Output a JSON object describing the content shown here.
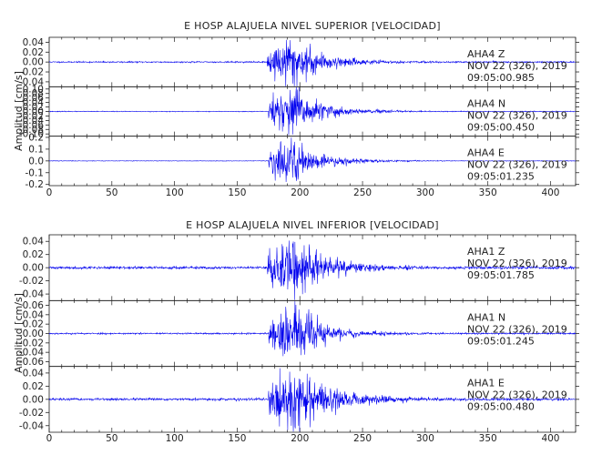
{
  "colors": {
    "trace": "#0000ee",
    "axis": "#222222",
    "background": "#ffffff"
  },
  "chart_data": [
    {
      "type": "line",
      "title": "E HOSP ALAJUELA NIVEL SUPERIOR [VELOCIDAD]",
      "ylabel": "Amplitud [cm/s]",
      "xlim": [
        0,
        420
      ],
      "xticks": [
        0,
        50,
        100,
        150,
        200,
        250,
        300,
        350,
        400
      ],
      "tick_labels": [
        "0",
        "50",
        "100",
        "150",
        "200",
        "250",
        "300",
        "350",
        "400"
      ],
      "traces": [
        {
          "station": "AHA4",
          "component": "Z",
          "date": "NOV 22 (326), 2019",
          "start_time": "09:05:00.985",
          "ylim": [
            -0.05,
            0.05
          ],
          "yticks": [
            0.04,
            0.02,
            0.0,
            -0.02,
            -0.04
          ],
          "ytick_labels": [
            "0.04",
            "0.02",
            "0.00",
            "-0.02",
            "-0.04"
          ],
          "arrival": 174,
          "peak_amplitude": 0.045,
          "noise_level": 0.0012,
          "coda_start": 195,
          "coda_end": 260,
          "seed": 11
        },
        {
          "station": "AHA4",
          "component": "N",
          "date": "NOV 22 (326), 2019",
          "start_time": "09:05:00.450",
          "ylim": [
            -0.11,
            0.11
          ],
          "yticks": [
            0.1,
            0.08,
            0.06,
            0.04,
            0.02,
            0.0,
            -0.02,
            -0.04,
            -0.06,
            -0.08,
            -0.1
          ],
          "ytick_labels": [
            "0.10",
            "0.08",
            "0.06",
            "0.04",
            "0.02",
            "0.00",
            "-0.02",
            "-0.04",
            "-0.06",
            "-0.08",
            "-0.10"
          ],
          "arrival": 175,
          "peak_amplitude": 0.095,
          "noise_level": 0.0015,
          "coda_start": 195,
          "coda_end": 265,
          "seed": 23
        },
        {
          "station": "AHA4",
          "component": "E",
          "date": "NOV 22 (326), 2019",
          "start_time": "09:05:01.235",
          "ylim": [
            -0.21,
            0.21
          ],
          "yticks": [
            0.2,
            0.1,
            0.0,
            -0.1,
            -0.2
          ],
          "ytick_labels": [
            "0.2",
            "0.1",
            "0.0",
            "-0.1",
            "-0.2"
          ],
          "arrival": 175,
          "peak_amplitude": 0.16,
          "noise_level": 0.002,
          "coda_start": 195,
          "coda_end": 265,
          "seed": 37
        }
      ]
    },
    {
      "type": "line",
      "title": "E HOSP ALAJUELA NIVEL INFERIOR [VELOCIDAD]",
      "ylabel": "Amplitud [cm/s]",
      "xlim": [
        0,
        420
      ],
      "xticks": [
        0,
        50,
        100,
        150,
        200,
        250,
        300,
        350,
        400
      ],
      "tick_labels": [
        "0",
        "50",
        "100",
        "150",
        "200",
        "250",
        "300",
        "350",
        "400"
      ],
      "traces": [
        {
          "station": "AHA1",
          "component": "Z",
          "date": "NOV 22 (326), 2019",
          "start_time": "09:05:01.785",
          "ylim": [
            -0.05,
            0.05
          ],
          "yticks": [
            0.04,
            0.02,
            0.0,
            -0.02,
            -0.04
          ],
          "ytick_labels": [
            "0.04",
            "0.02",
            "0.00",
            "-0.02",
            "-0.04"
          ],
          "arrival": 174,
          "peak_amplitude": 0.045,
          "noise_level": 0.0018,
          "coda_start": 195,
          "coda_end": 265,
          "seed": 41
        },
        {
          "station": "AHA1",
          "component": "N",
          "date": "NOV 22 (326), 2019",
          "start_time": "09:05:01.245",
          "ylim": [
            -0.07,
            0.07
          ],
          "yticks": [
            0.06,
            0.04,
            0.02,
            0.0,
            -0.02,
            -0.04,
            -0.06
          ],
          "ytick_labels": [
            "0.06",
            "0.04",
            "0.02",
            "0.00",
            "-0.02",
            "-0.04",
            "-0.06"
          ],
          "arrival": 175,
          "peak_amplitude": 0.06,
          "noise_level": 0.0015,
          "coda_start": 195,
          "coda_end": 260,
          "seed": 53
        },
        {
          "station": "AHA1",
          "component": "E",
          "date": "NOV 22 (326), 2019",
          "start_time": "09:05:00.480",
          "ylim": [
            -0.05,
            0.05
          ],
          "yticks": [
            0.04,
            0.02,
            0.0,
            -0.02,
            -0.04
          ],
          "ytick_labels": [
            "0.04",
            "0.02",
            "0.00",
            "-0.02",
            "-0.04"
          ],
          "arrival": 175,
          "peak_amplitude": 0.045,
          "noise_level": 0.0015,
          "coda_start": 195,
          "coda_end": 280,
          "seed": 67
        }
      ]
    }
  ]
}
